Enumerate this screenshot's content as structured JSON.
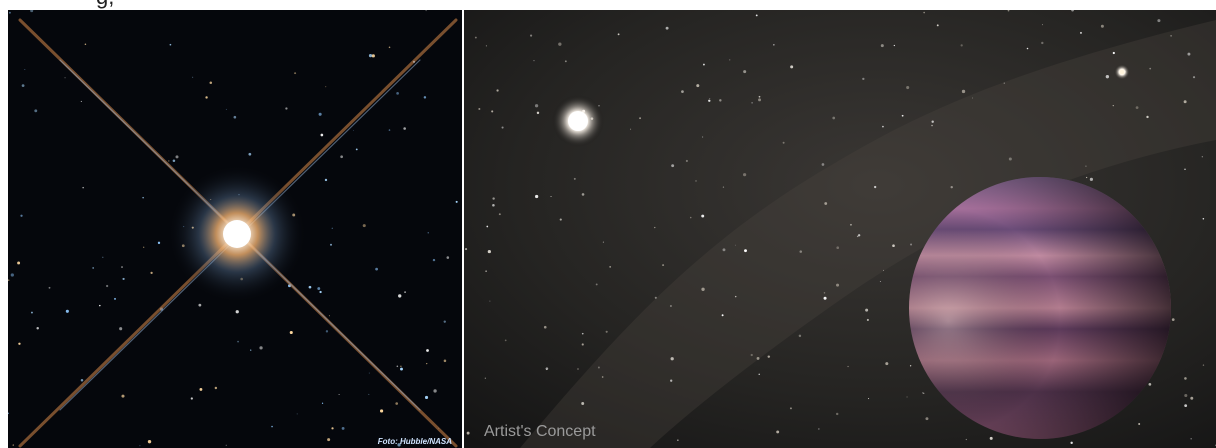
{
  "caption_fragment": "g,",
  "left_image": {
    "credit": "Foto: Hubble/NASA"
  },
  "right_image": {
    "label": "Artist's Concept"
  }
}
